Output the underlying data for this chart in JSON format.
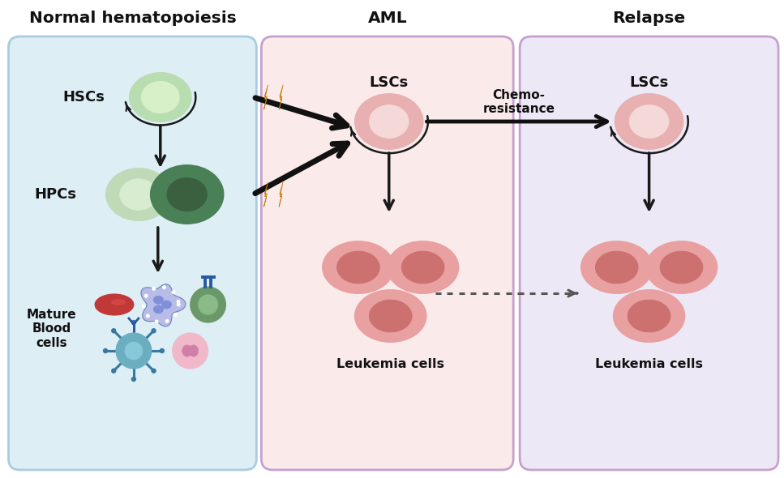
{
  "panel1_title": "Normal hematopoiesis",
  "panel2_title": "AML",
  "panel3_title": "Relapse",
  "panel1_bg": "#ddeef5",
  "panel2_bg": "#faeaea",
  "panel3_bg": "#ede8f5",
  "panel1_border": "#aacce0",
  "panel2_border": "#c8a0d0",
  "panel3_border": "#c8a0d0",
  "hsc_outer": "#b8ddb0",
  "hsc_inner": "#d8f0c8",
  "hpc_light_outer": "#c0dab8",
  "hpc_light_inner": "#d8ecd0",
  "hpc_dark_outer": "#4a8055",
  "hpc_dark_inner": "#3a6040",
  "lsc_outer": "#e8b0b0",
  "lsc_inner": "#f5d8d8",
  "leuk_outer": "#cc7070",
  "leuk_inner": "#bb5858",
  "leuk_rim": "#e8a0a0",
  "rbc_color": "#c03838",
  "neut_outer": "#b8bce8",
  "neut_inner": "#8090d8",
  "grcell_outer": "#6a9868",
  "grcell_inner": "#8aba88",
  "lymph_color": "#6aaec0",
  "mono_outer": "#f0b8c8",
  "mono_inner": "#d080a8",
  "arrow_col": "#1a1a1a",
  "dashed_col": "#555555",
  "lightning_col": "#f5a020",
  "text_col": "#111111"
}
